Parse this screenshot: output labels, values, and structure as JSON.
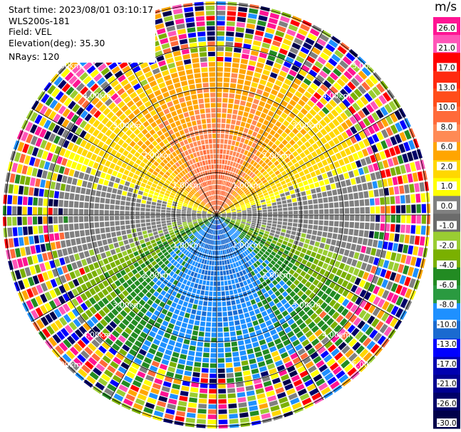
{
  "info": {
    "start_time": "Start time: 2023/08/01 03:10:17",
    "instrument": "WLS200s-181",
    "field": "Field: VEL",
    "elevation": "Elevation(deg): 35.30",
    "nrays": "NRays: 120"
  },
  "colorbar": {
    "unit": "m/s",
    "ticks": [
      "26.0",
      "21.0",
      "17.0",
      "13.0",
      "10.0",
      "8.0",
      "6.0",
      "2.0",
      "1.0",
      "0.0",
      "-1.0",
      "-2.0",
      "-4.0",
      "-6.0",
      "-8.0",
      "-10.0",
      "-13.0",
      "-17.0",
      "-21.0",
      "-26.0",
      "-30.0"
    ],
    "colors": [
      "#ff1493",
      "#ff55b8",
      "#ff0000",
      "#ff2a10",
      "#ff4d1a",
      "#ff6a3a",
      "#ff8a55",
      "#ffa500",
      "#ffd700",
      "#ffff00",
      "#808080",
      "#6b6b6b",
      "#9acd32",
      "#7ab000",
      "#228b22",
      "#2a9a40",
      "#1e90ff",
      "#1a6ad0",
      "#0000ff",
      "#0000b0",
      "#000090",
      "#000068",
      "#00004a"
    ]
  },
  "chart_data": {
    "type": "polar-ppi",
    "field": "VEL",
    "units": "m/s",
    "nrays": 120,
    "range_rings_km": [
      1.0,
      2.0,
      3.0,
      4.0,
      5.0
    ],
    "ring_label_texts": [
      "1.00km",
      "2.00km",
      "3.00km",
      "4.00km",
      "5.00km"
    ],
    "azimuth_lines_deg": [
      0,
      30,
      60,
      90,
      120,
      150,
      180,
      210,
      240,
      270,
      300,
      330
    ],
    "max_range_km": 5.0,
    "wind_pattern": {
      "positive_core_direction": "north",
      "negative_core_direction": "south",
      "peak_positive_ms": 13.0,
      "peak_negative_ms": -10.0,
      "noise_beyond_km": 3.4
    }
  }
}
